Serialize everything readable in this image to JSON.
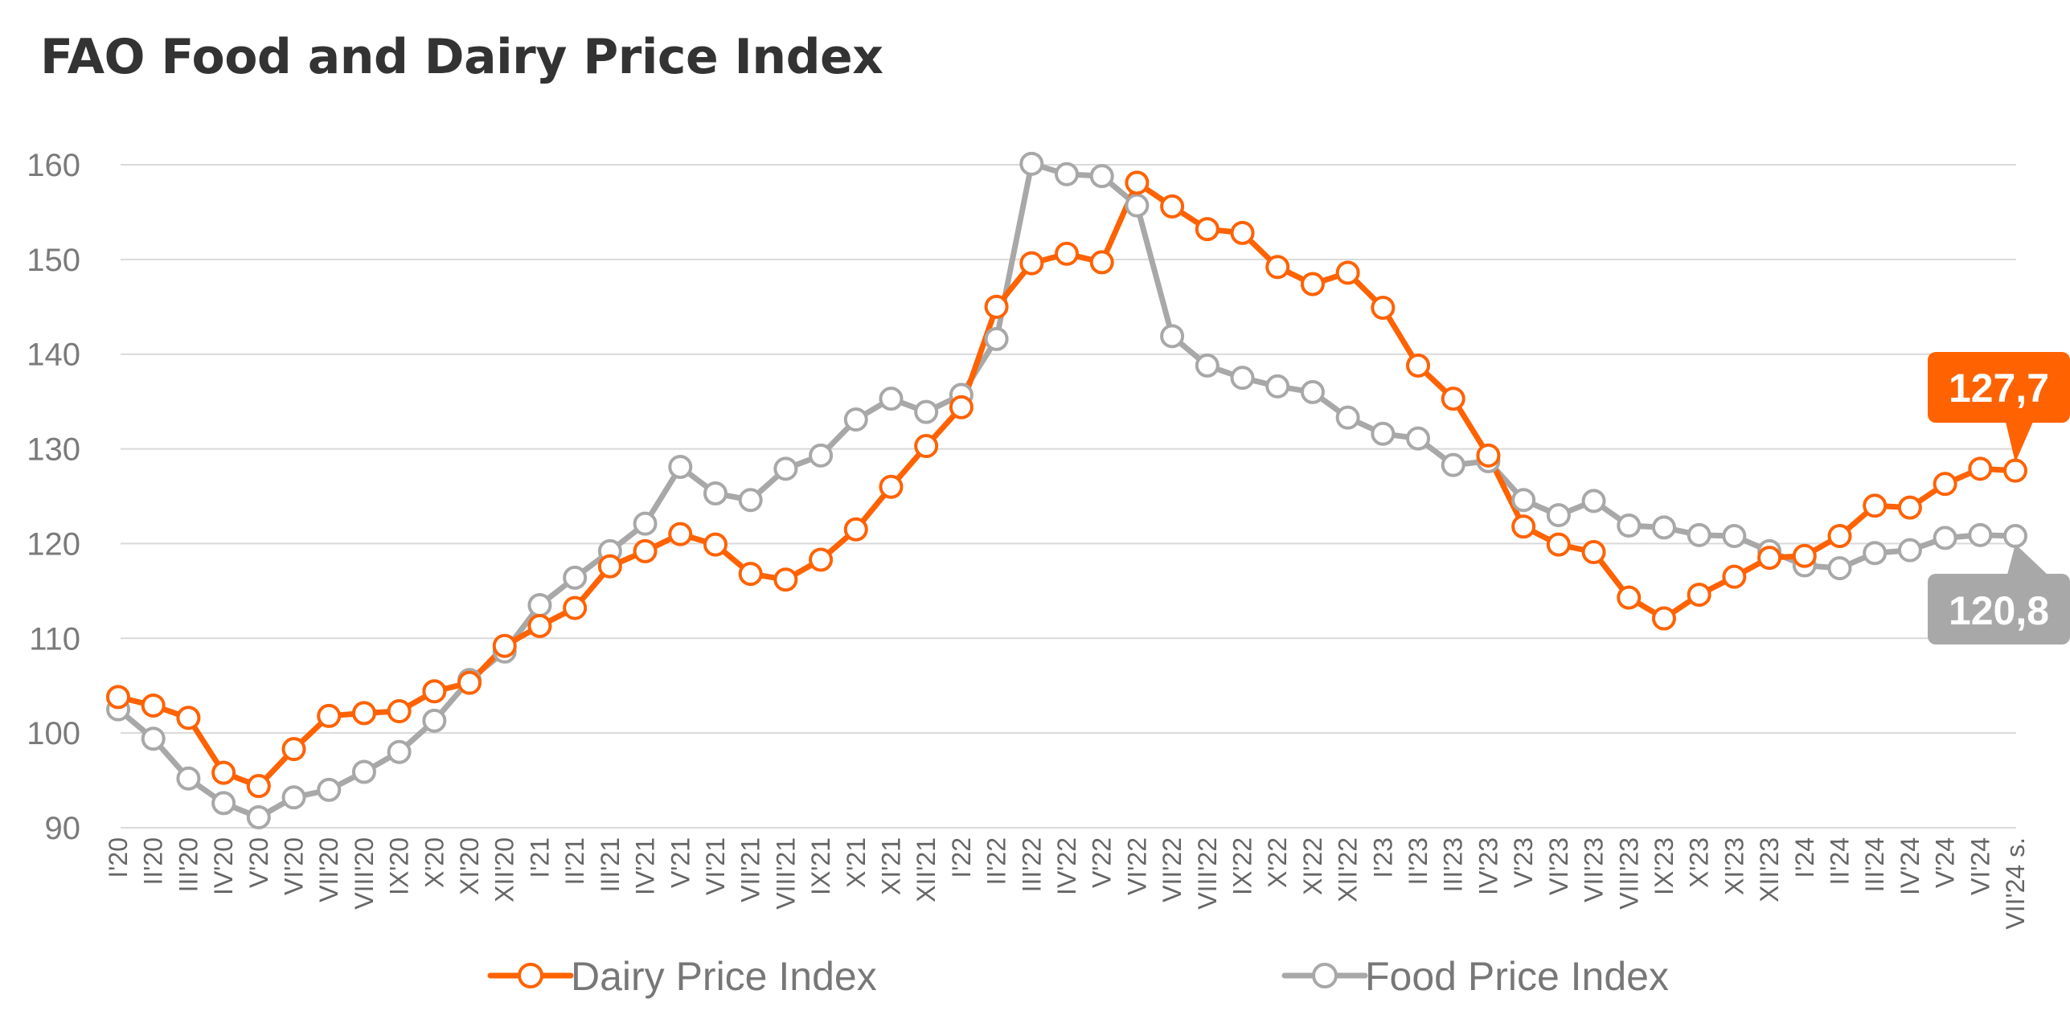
{
  "title": "FAO Food and Dairy Price Index",
  "colors": {
    "dairy": "#FF6200",
    "food": "#A8A8A8",
    "grid": "#D9D9D9"
  },
  "chart_data": {
    "type": "line",
    "title": "FAO Food and Dairy Price Index",
    "xlabel": "",
    "ylabel": "",
    "ylim": [
      90,
      160
    ],
    "yticks": [
      90,
      100,
      110,
      120,
      130,
      140,
      150,
      160
    ],
    "grid": true,
    "legend_position": "bottom",
    "categories": [
      "I'20",
      "II'20",
      "III'20",
      "IV'20",
      "V'20",
      "VI'20",
      "VII'20",
      "VIII'20",
      "IX'20",
      "X'20",
      "XI'20",
      "XII'20",
      "I'21",
      "II'21",
      "III'21",
      "IV'21",
      "V'21",
      "VI'21",
      "VII'21",
      "VIII'21",
      "IX'21",
      "X'21",
      "XI'21",
      "XII'21",
      "I'22",
      "II'22",
      "III'22",
      "IV'22",
      "V'22",
      "VI'22",
      "VII'22",
      "VIII'22",
      "IX'22",
      "X'22",
      "XI'22",
      "XII'22",
      "I'23",
      "II'23",
      "III'23",
      "IV'23",
      "V'23",
      "VI'23",
      "VII'23",
      "VIII'23",
      "IX'23",
      "X'23",
      "XI'23",
      "XII'23",
      "I'24",
      "II'24",
      "III'24",
      "IV'24",
      "V'24",
      "VI'24",
      "VII'24 s."
    ],
    "series": [
      {
        "name": "Dairy Price Index",
        "color": "#FF6200",
        "values": [
          103.8,
          102.9,
          101.6,
          95.8,
          94.4,
          98.3,
          101.8,
          102.1,
          102.3,
          104.4,
          105.3,
          109.2,
          111.3,
          113.2,
          117.6,
          119.2,
          121.0,
          119.9,
          116.8,
          116.2,
          118.3,
          121.5,
          126.0,
          130.3,
          134.4,
          145.0,
          149.6,
          150.6,
          149.7,
          158.1,
          155.6,
          153.2,
          152.8,
          149.2,
          147.4,
          148.6,
          144.9,
          138.8,
          135.3,
          129.3,
          121.8,
          119.9,
          119.1,
          114.3,
          112.1,
          114.6,
          116.5,
          118.5,
          118.7,
          120.8,
          124.0,
          123.8,
          126.3,
          127.9,
          127.7
        ]
      },
      {
        "name": "Food Price Index",
        "color": "#A8A8A8",
        "values": [
          102.5,
          99.4,
          95.2,
          92.6,
          91.1,
          93.2,
          94.0,
          95.9,
          98.0,
          101.3,
          105.6,
          108.6,
          113.5,
          116.4,
          119.2,
          122.1,
          128.1,
          125.3,
          124.6,
          127.9,
          129.3,
          133.1,
          135.3,
          133.9,
          135.7,
          141.6,
          160.1,
          159.0,
          158.8,
          155.7,
          141.9,
          138.8,
          137.5,
          136.6,
          136.0,
          133.3,
          131.6,
          131.1,
          128.3,
          128.7,
          124.6,
          123.0,
          124.5,
          121.9,
          121.7,
          120.9,
          120.8,
          119.2,
          117.7,
          117.4,
          119.0,
          119.3,
          120.6,
          120.9,
          120.8
        ]
      }
    ],
    "annotations": [
      {
        "series": "Dairy Price Index",
        "label": "127,7"
      },
      {
        "series": "Food Price Index",
        "label": "120,8"
      }
    ]
  }
}
